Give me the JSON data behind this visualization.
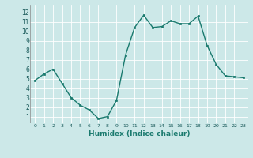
{
  "x": [
    0,
    1,
    2,
    3,
    4,
    5,
    6,
    7,
    8,
    9,
    10,
    11,
    12,
    13,
    14,
    15,
    16,
    17,
    18,
    19,
    20,
    21,
    22,
    23
  ],
  "y": [
    4.8,
    5.5,
    6.0,
    4.5,
    3.0,
    2.2,
    1.7,
    0.8,
    1.0,
    2.7,
    7.5,
    10.4,
    11.7,
    10.4,
    10.5,
    11.1,
    10.8,
    10.8,
    11.6,
    8.5,
    6.5,
    5.3,
    5.2,
    5.1
  ],
  "xlabel": "Humidex (Indice chaleur)",
  "ylim": [
    0.3,
    12.8
  ],
  "xlim": [
    -0.5,
    23.5
  ],
  "yticks": [
    1,
    2,
    3,
    4,
    5,
    6,
    7,
    8,
    9,
    10,
    11,
    12
  ],
  "xtick_labels": [
    "0",
    "1",
    "2",
    "3",
    "4",
    "5",
    "6",
    "7",
    "8",
    "9",
    "10",
    "11",
    "12",
    "13",
    "14",
    "15",
    "16",
    "17",
    "18",
    "19",
    "20",
    "21",
    "22",
    "23"
  ],
  "line_color": "#1a7a6e",
  "marker_color": "#1a7a6e",
  "bg_color": "#cce8e8",
  "grid_color": "#ffffff",
  "label_color": "#1a7a6e"
}
